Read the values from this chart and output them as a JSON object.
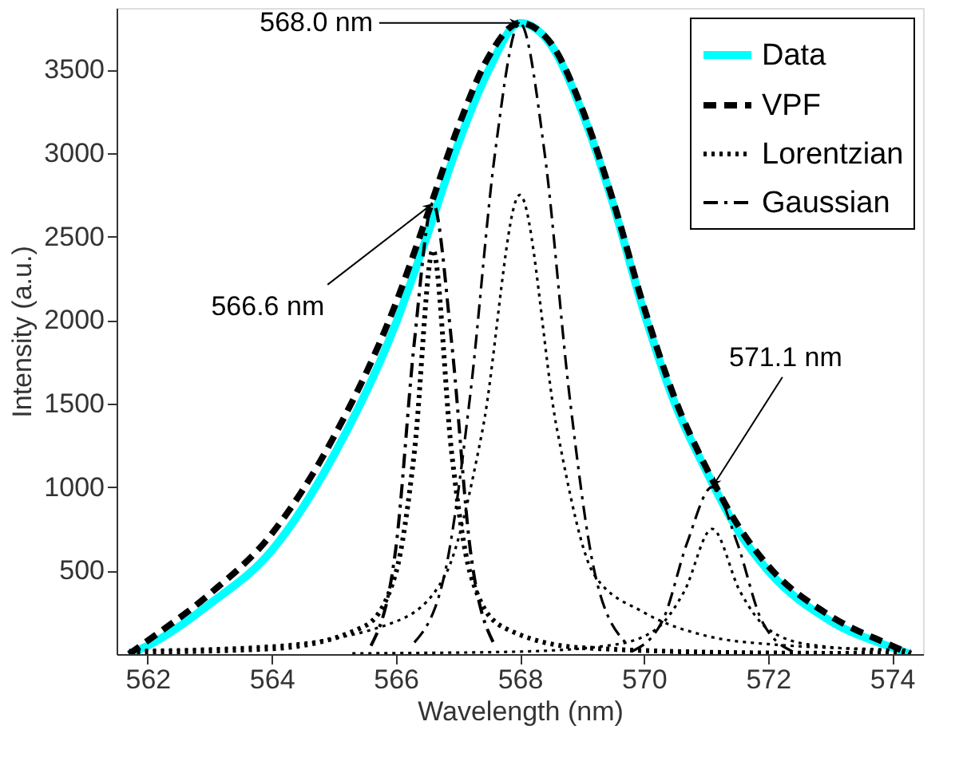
{
  "chart_data": {
    "type": "line",
    "xlabel": "Wavelength (nm)",
    "ylabel": "Intensity (a.u.)",
    "xlim": [
      561.5,
      574.5
    ],
    "xticks": [
      562,
      564,
      566,
      568,
      570,
      572,
      574
    ],
    "ylim": [
      0,
      3870
    ],
    "yticks": [
      500,
      1000,
      1500,
      2000,
      2500,
      3000,
      3500
    ],
    "grid": false,
    "legend": "top right",
    "series": [
      {
        "name": "Data",
        "color": "#00ffff",
        "line_style": "solid",
        "x": [
          561.7,
          562,
          563,
          564,
          565,
          566,
          566.5,
          567,
          567.5,
          568,
          568.5,
          569,
          569.5,
          570,
          570.5,
          571,
          571.5,
          572,
          573,
          574,
          574.3
        ],
        "values": [
          0,
          50,
          300,
          620,
          1190,
          1980,
          2500,
          3050,
          3500,
          3780,
          3650,
          3250,
          2700,
          2050,
          1500,
          1100,
          750,
          500,
          200,
          40,
          0
        ]
      },
      {
        "name": "VPF",
        "color": "#000000",
        "line_style": "dashed",
        "x": [
          561.7,
          562,
          563,
          564,
          565,
          566,
          566.5,
          567,
          567.5,
          568,
          568.5,
          569,
          569.5,
          570,
          570.5,
          571,
          571.5,
          572,
          573,
          574,
          574.3
        ],
        "values": [
          0,
          80,
          360,
          720,
          1300,
          2100,
          2620,
          3150,
          3580,
          3780,
          3660,
          3270,
          2720,
          2080,
          1530,
          1120,
          780,
          530,
          230,
          50,
          0
        ]
      },
      {
        "name": "Lorentzian",
        "color": "#000000",
        "line_style": "dotted",
        "x": [
          561.7,
          564,
          565.5,
          566,
          566.3,
          566.6,
          566.9,
          567.2,
          567.7,
          569,
          572,
          574.3
        ],
        "values": [
          10,
          32,
          168,
          485,
          1210,
          2420,
          1210,
          485,
          168,
          38,
          7,
          4
        ]
      },
      {
        "color": "#000000",
        "line_style": "dotted",
        "x": [
          561.7,
          564,
          566,
          566.8,
          567.4,
          568,
          568.6,
          569.2,
          570,
          571,
          572,
          574.3
        ],
        "values": [
          23,
          51,
          195,
          475,
          1345,
          2750,
          1345,
          475,
          250,
          110,
          60,
          25
        ]
      },
      {
        "color": "#000000",
        "line_style": "dotted",
        "x": [
          565.3,
          566,
          568,
          569.5,
          570.2,
          570.65,
          571.1,
          571.55,
          572,
          572.7,
          574.3
        ],
        "values": [
          4,
          6,
          15,
          55,
          150,
          375,
          750,
          375,
          150,
          55,
          15
        ]
      },
      {
        "name": "Gaussian",
        "color": "#000000",
        "line_style": "dashdot",
        "x": [
          565.6,
          566,
          566.3,
          566.6,
          566.9,
          567.2,
          567.6
        ],
        "values": [
          50,
          630,
          1870,
          2700,
          1870,
          630,
          50
        ]
      },
      {
        "color": "#000000",
        "line_style": "dashdot",
        "x": [
          566.3,
          566.8,
          567.2,
          567.6,
          568,
          568.4,
          568.8,
          569.2,
          569.7
        ],
        "values": [
          70,
          500,
          1550,
          3000,
          3780,
          3000,
          1550,
          500,
          70
        ]
      },
      {
        "color": "#000000",
        "line_style": "dashdot",
        "x": [
          569.8,
          570.3,
          570.7,
          571.1,
          571.5,
          571.9,
          572.4
        ],
        "values": [
          15,
          200,
          670,
          1000,
          670,
          200,
          15
        ]
      }
    ],
    "annotations": [
      {
        "text": "568.0 nm",
        "x": 568.0,
        "y": 3780
      },
      {
        "text": "566.6 nm",
        "x": 566.6,
        "y": 2700
      },
      {
        "text": "571.1 nm",
        "x": 571.1,
        "y": 1000
      }
    ]
  }
}
